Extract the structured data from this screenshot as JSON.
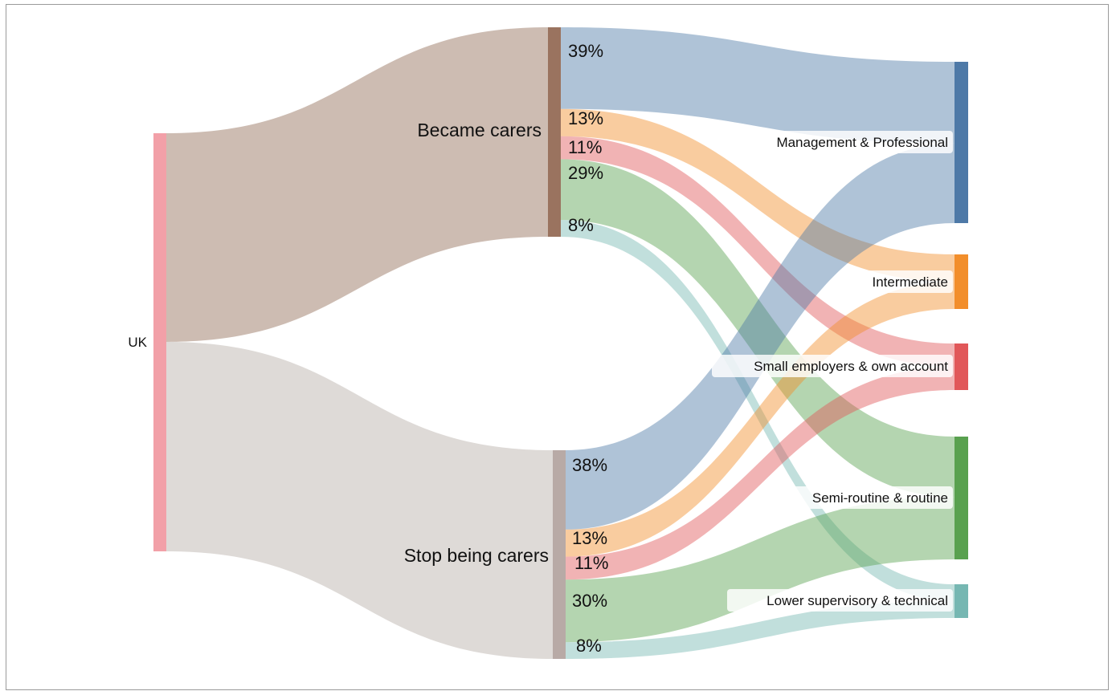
{
  "colors": {
    "uk": "#f2a0a8",
    "became": "#9a735f",
    "stop": "#b8aaa6",
    "flow_became": "#cdbcb2",
    "flow_stop": "#dedad7",
    "management": "#4e79a7",
    "intermediate": "#f28e2b",
    "small_employers": "#e15759",
    "semi_routine": "#59a14f",
    "lower_supervisory": "#76b7b2"
  },
  "nodes": {
    "source": "UK",
    "groups": [
      "Became carers",
      "Stop being carers"
    ],
    "classes": [
      "Management & Professional",
      "Intermediate",
      "Small employers & own account",
      "Semi-routine & routine",
      "Lower supervisory & technical"
    ]
  },
  "percent_labels": {
    "became": [
      "39%",
      "13%",
      "11%",
      "29%",
      "8%"
    ],
    "stop": [
      "38%",
      "13%",
      "11%",
      "30%",
      "8%"
    ]
  },
  "chart_data": {
    "type": "sankey",
    "nodes": [
      "UK",
      "Became carers",
      "Stop being carers",
      "Management & Professional",
      "Intermediate",
      "Small employers & own account",
      "Semi-routine & routine",
      "Lower supervisory & technical"
    ],
    "links": [
      {
        "source": "UK",
        "target": "Became carers",
        "share": 0.5
      },
      {
        "source": "UK",
        "target": "Stop being carers",
        "share": 0.5
      },
      {
        "source": "Became carers",
        "target": "Management & Professional",
        "percent": 39
      },
      {
        "source": "Became carers",
        "target": "Intermediate",
        "percent": 13
      },
      {
        "source": "Became carers",
        "target": "Small employers & own account",
        "percent": 11
      },
      {
        "source": "Became carers",
        "target": "Semi-routine & routine",
        "percent": 29
      },
      {
        "source": "Became carers",
        "target": "Lower supervisory & technical",
        "percent": 8
      },
      {
        "source": "Stop being carers",
        "target": "Management & Professional",
        "percent": 38
      },
      {
        "source": "Stop being carers",
        "target": "Intermediate",
        "percent": 13
      },
      {
        "source": "Stop being carers",
        "target": "Small employers & own account",
        "percent": 11
      },
      {
        "source": "Stop being carers",
        "target": "Semi-routine & routine",
        "percent": 30
      },
      {
        "source": "Stop being carers",
        "target": "Lower supervisory & technical",
        "percent": 8
      }
    ]
  }
}
